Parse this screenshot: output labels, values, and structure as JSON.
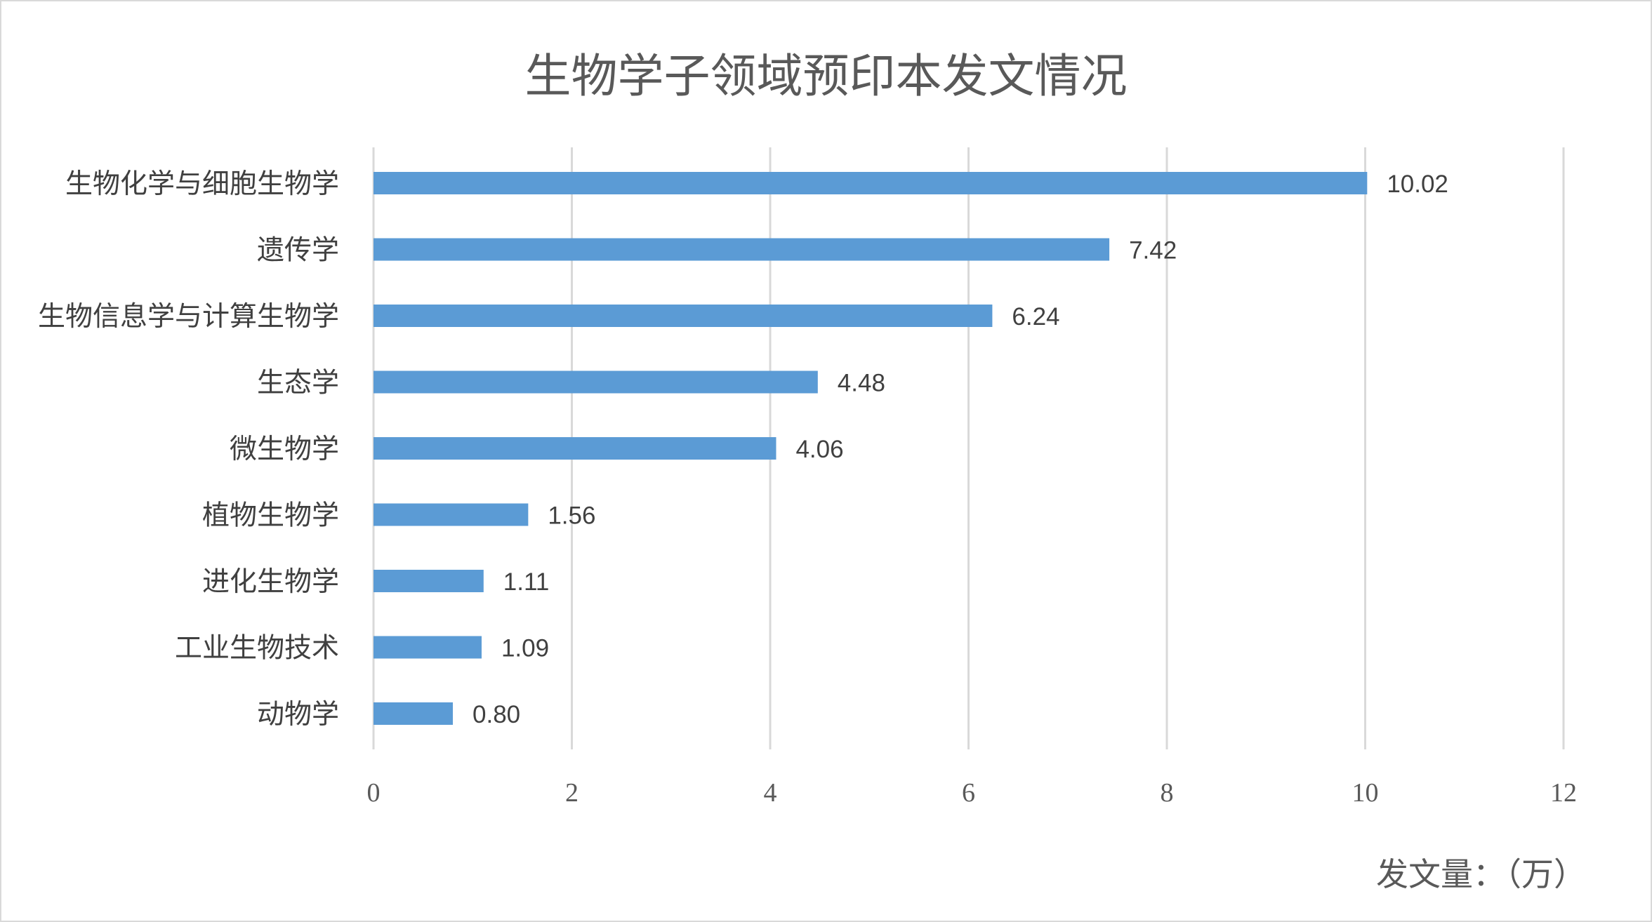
{
  "chart_data": {
    "type": "bar",
    "orientation": "horizontal",
    "title": "生物学子领域预印本发文情况",
    "xlabel": "发文量：（万）",
    "ylabel": "",
    "categories": [
      "生物化学与细胞生物学",
      "遗传学",
      "生物信息学与计算生物学",
      "生态学",
      "微生物学",
      "植物生物学",
      "进化生物学",
      "工业生物技术",
      "动物学"
    ],
    "values": [
      10.02,
      7.42,
      6.24,
      4.48,
      4.06,
      1.56,
      1.11,
      1.09,
      0.8
    ],
    "value_labels": [
      "10.02",
      "7.42",
      "6.24",
      "4.48",
      "4.06",
      "1.56",
      "1.11",
      "1.09",
      "0.80"
    ],
    "xlim": [
      0,
      12
    ],
    "xticks": [
      "0",
      "2",
      "4",
      "6",
      "8",
      "10",
      "12"
    ],
    "grid": "vertical",
    "bar_color": "#5b9bd5",
    "grid_color": "#d9d9d9"
  }
}
